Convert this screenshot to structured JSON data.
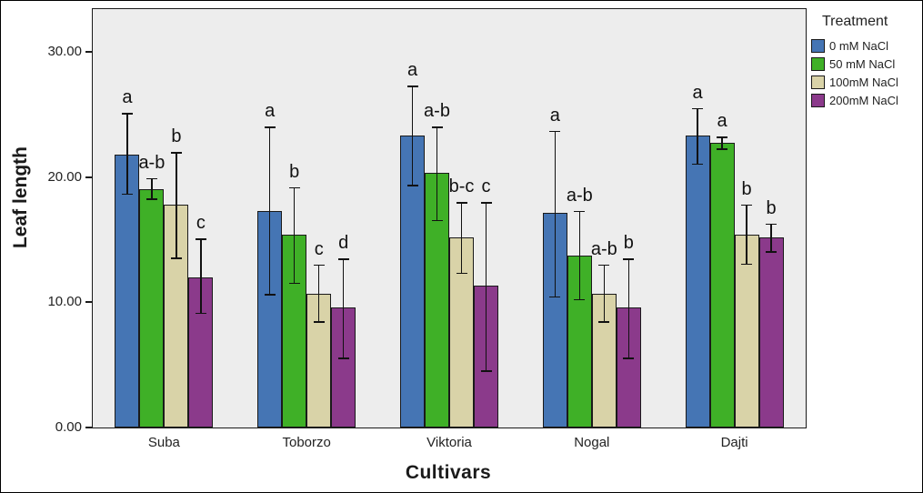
{
  "chart_data": {
    "type": "bar",
    "title": "",
    "xlabel": "Cultivars",
    "ylabel": "Leaf length",
    "legend_title": "Treatment",
    "legend_position": "top-right",
    "grid": false,
    "plot_background": "#ededed",
    "ylim": [
      0,
      33.4
    ],
    "yticks": [
      0,
      10,
      20,
      30
    ],
    "ytick_labels": [
      "0.00",
      "10.00",
      "20.00",
      "30.00"
    ],
    "categories": [
      "Suba",
      "Toborzo",
      "Viktoria",
      "Nogal",
      "Dajti"
    ],
    "series": [
      {
        "name": "0 mM NaCl",
        "color": "#4575b4",
        "values": [
          21.8,
          17.3,
          23.3,
          17.1,
          23.3
        ],
        "err_low": [
          18.6,
          10.6,
          19.3,
          10.4,
          21.0
        ],
        "err_high": [
          25.1,
          24.0,
          27.3,
          23.7,
          25.5
        ],
        "labels": [
          "a",
          "a",
          "a",
          "a",
          "a"
        ]
      },
      {
        "name": "50 mM NaCl",
        "color": "#3fb027",
        "values": [
          19.0,
          15.4,
          20.3,
          13.7,
          22.7
        ],
        "err_low": [
          18.2,
          11.5,
          16.5,
          10.2,
          22.2
        ],
        "err_high": [
          19.9,
          19.2,
          24.0,
          17.3,
          23.2
        ],
        "labels": [
          "a-b",
          "b",
          "a-b",
          "a-b",
          "a"
        ]
      },
      {
        "name": "100mM NaCl",
        "color": "#d9d3a8",
        "values": [
          17.8,
          10.7,
          15.2,
          10.7,
          15.4
        ],
        "err_low": [
          13.5,
          8.4,
          12.3,
          8.4,
          13.0
        ],
        "err_high": [
          22.0,
          13.0,
          18.0,
          13.0,
          17.8
        ],
        "labels": [
          "b",
          "c",
          "b-c",
          "a-b",
          "b"
        ]
      },
      {
        "name": "200mM NaCl",
        "color": "#8b3a8b",
        "values": [
          12.0,
          9.6,
          11.3,
          9.6,
          15.2
        ],
        "err_low": [
          9.1,
          5.5,
          4.5,
          5.5,
          14.0
        ],
        "err_high": [
          15.1,
          13.5,
          18.0,
          13.5,
          16.3
        ],
        "labels": [
          "c",
          "d",
          "c",
          "b",
          "b"
        ]
      }
    ]
  }
}
